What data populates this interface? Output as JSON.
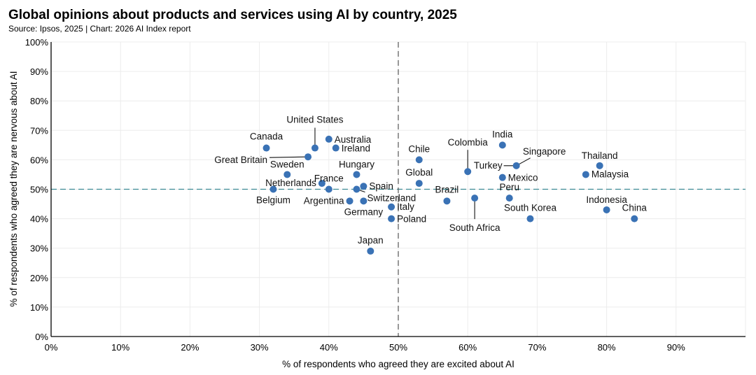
{
  "chart_data": {
    "type": "scatter",
    "title": "Global opinions about products and services using AI by country, 2025",
    "subtitle": "Source: Ipsos, 2025 | Chart: 2026 AI Index report",
    "xlabel": "% of respondents who agreed they are excited about AI",
    "ylabel": "% of respondents who agreed they are nervous about AI",
    "xlim": [
      0,
      100
    ],
    "ylim": [
      0,
      100
    ],
    "xticks": [
      "0%",
      "10%",
      "20%",
      "30%",
      "40%",
      "50%",
      "60%",
      "70%",
      "80%",
      "90%"
    ],
    "yticks": [
      "0%",
      "10%",
      "20%",
      "30%",
      "40%",
      "50%",
      "60%",
      "70%",
      "80%",
      "90%",
      "100%"
    ],
    "grid": true,
    "reference_lines": {
      "x": 50,
      "y": 50
    },
    "point_color": "#3a72b5",
    "points": [
      {
        "label": "Canada",
        "x": 31,
        "y": 64
      },
      {
        "label": "United States",
        "x": 38,
        "y": 64
      },
      {
        "label": "Australia",
        "x": 40,
        "y": 67
      },
      {
        "label": "Ireland",
        "x": 41,
        "y": 64
      },
      {
        "label": "Great Britain",
        "x": 37,
        "y": 61
      },
      {
        "label": "Sweden",
        "x": 34,
        "y": 55
      },
      {
        "label": "Netherlands",
        "x": 39,
        "y": 52
      },
      {
        "label": "France",
        "x": 40,
        "y": 50
      },
      {
        "label": "Belgium",
        "x": 32,
        "y": 50
      },
      {
        "label": "Argentina",
        "x": 43,
        "y": 46
      },
      {
        "label": "Hungary",
        "x": 44,
        "y": 55
      },
      {
        "label": "Spain",
        "x": 45,
        "y": 51
      },
      {
        "label": "Switzerland",
        "x": 44,
        "y": 50
      },
      {
        "label": "Germany",
        "x": 45,
        "y": 46
      },
      {
        "label": "Italy",
        "x": 49,
        "y": 44
      },
      {
        "label": "Poland",
        "x": 49,
        "y": 40
      },
      {
        "label": "Japan",
        "x": 46,
        "y": 29
      },
      {
        "label": "Chile",
        "x": 53,
        "y": 60
      },
      {
        "label": "Global",
        "x": 53,
        "y": 52
      },
      {
        "label": "Colombia",
        "x": 60,
        "y": 56
      },
      {
        "label": "India",
        "x": 65,
        "y": 65
      },
      {
        "label": "Turkey",
        "x": 67,
        "y": 58
      },
      {
        "label": "Singapore",
        "x": 67,
        "y": 58
      },
      {
        "label": "Mexico",
        "x": 65,
        "y": 54
      },
      {
        "label": "Thailand",
        "x": 79,
        "y": 58
      },
      {
        "label": "Malaysia",
        "x": 77,
        "y": 55
      },
      {
        "label": "Brazil",
        "x": 57,
        "y": 46
      },
      {
        "label": "South Africa",
        "x": 61,
        "y": 47
      },
      {
        "label": "Peru",
        "x": 66,
        "y": 47
      },
      {
        "label": "South Korea",
        "x": 69,
        "y": 40
      },
      {
        "label": "Indonesia",
        "x": 80,
        "y": 43
      },
      {
        "label": "China",
        "x": 84,
        "y": 40
      }
    ]
  }
}
